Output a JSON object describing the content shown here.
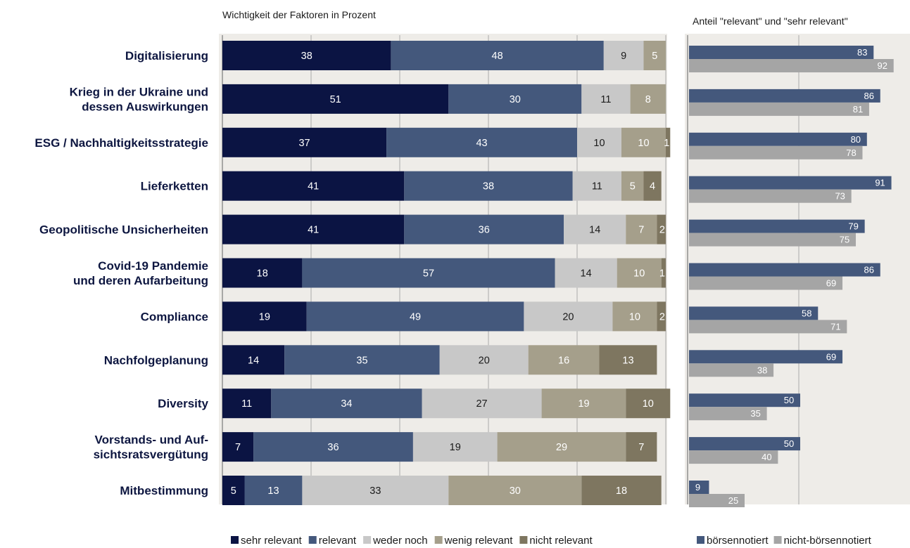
{
  "chart_data": [
    {
      "type": "bar",
      "orientation": "horizontal",
      "stacked": true,
      "title": "Wichtigkeit der Faktoren in Prozent",
      "categories": [
        "Digitalisierung",
        "Krieg in der Ukraine und\ndessen Auswirkungen",
        "ESG / Nachhaltigkeitsstrategie",
        "Lieferketten",
        "Geopolitische Unsicherheiten",
        "Covid-19 Pandemie\nund deren Aufarbeitung",
        "Compliance",
        "Nachfolgeplanung",
        "Diversity",
        "Vorstands- und Auf-\nsichtsratsvergütung",
        "Mitbestimmung"
      ],
      "series": [
        {
          "name": "sehr relevant",
          "color": "#0b1443",
          "label_color": "#ffffff",
          "values": [
            38,
            51,
            37,
            41,
            41,
            18,
            19,
            14,
            11,
            7,
            5
          ]
        },
        {
          "name": "relevant",
          "color": "#44587c",
          "label_color": "#ffffff",
          "values": [
            48,
            30,
            43,
            38,
            36,
            57,
            49,
            35,
            34,
            36,
            13
          ]
        },
        {
          "name": "weder noch",
          "color": "#c8c8c8",
          "label_color": "#1b1b1b",
          "values": [
            9,
            11,
            10,
            11,
            14,
            14,
            20,
            20,
            27,
            19,
            33
          ]
        },
        {
          "name": "wenig relevant",
          "color": "#a59f8b",
          "label_color": "#ffffff",
          "values": [
            5,
            8,
            10,
            5,
            7,
            10,
            10,
            16,
            19,
            29,
            30
          ]
        },
        {
          "name": "nicht relevant",
          "color": "#7e7660",
          "label_color": "#ffffff",
          "values": [
            0,
            0,
            1,
            4,
            2,
            1,
            2,
            13,
            10,
            7,
            18
          ]
        }
      ],
      "xlim": [
        0,
        100
      ],
      "grid": true,
      "legend_position": "bottom"
    },
    {
      "type": "bar",
      "orientation": "horizontal",
      "grouped": true,
      "title": "Anteil \"relevant\" und \"sehr relevant\"",
      "categories": [
        "Digitalisierung",
        "Krieg in der Ukraine und\ndessen Auswirkungen",
        "ESG / Nachhaltigkeitsstrategie",
        "Lieferketten",
        "Geopolitische Unsicherheiten",
        "Covid-19 Pandemie\nund deren Aufarbeitung",
        "Compliance",
        "Nachfolgeplanung",
        "Diversity",
        "Vorstands- und Auf-\nsichtsratsvergütung",
        "Mitbestimmung"
      ],
      "series": [
        {
          "name": "börsennotiert",
          "color": "#44587c",
          "label_color": "#ffffff",
          "values": [
            83,
            86,
            80,
            91,
            79,
            86,
            58,
            69,
            50,
            50,
            9
          ]
        },
        {
          "name": "nicht-börsennotiert",
          "color": "#a5a5a5",
          "label_color": "#ffffff",
          "values": [
            92,
            81,
            78,
            73,
            75,
            69,
            71,
            38,
            35,
            40,
            25
          ]
        }
      ],
      "xlim": [
        0,
        100
      ],
      "grid": true,
      "legend_position": "bottom"
    }
  ]
}
